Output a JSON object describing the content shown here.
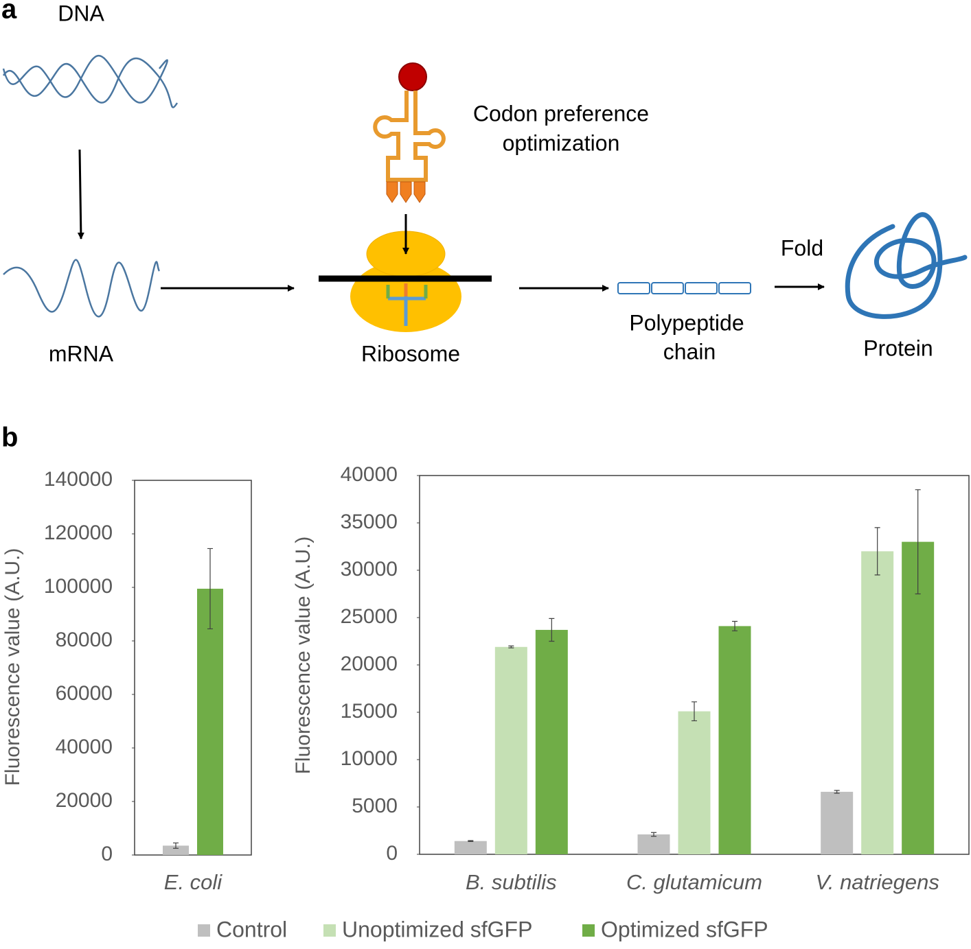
{
  "panel_a": {
    "label": "a",
    "dna": "DNA",
    "codon": [
      "Codon preference",
      "optimization"
    ],
    "mrna": "mRNA",
    "ribosome": "Ribosome",
    "polypeptide": [
      "Polypeptide",
      "chain"
    ],
    "fold": "Fold",
    "protein": "Protein"
  },
  "panel_b": {
    "label": "b"
  },
  "chart_data": [
    {
      "type": "bar",
      "ylabel": "Fluorescence value (A.U.)",
      "categories": [
        "E. coli"
      ],
      "series": [
        {
          "name": "Control",
          "color": "#bfbfbf",
          "values": [
            3500
          ],
          "errors": [
            1000
          ]
        },
        {
          "name": "Optimized sfGFP",
          "color": "#70ad47",
          "values": [
            99500
          ],
          "errors": [
            15000
          ]
        }
      ],
      "ylim": [
        0,
        140000
      ],
      "yticks": [
        0,
        20000,
        40000,
        60000,
        80000,
        100000,
        120000,
        140000
      ],
      "grid": false
    },
    {
      "type": "bar",
      "ylabel": "Fluorescence value (A.U.)",
      "categories": [
        "B. subtilis",
        "C. glutamicum",
        "V. natriegens"
      ],
      "series": [
        {
          "name": "Control",
          "color": "#bfbfbf",
          "values": [
            1400,
            2100,
            6600
          ],
          "errors": [
            50,
            200,
            150
          ]
        },
        {
          "name": "Unoptimized sfGFP",
          "color": "#c5e0b4",
          "values": [
            21900,
            15100,
            32000
          ],
          "errors": [
            100,
            1000,
            2500
          ]
        },
        {
          "name": "Optimized sfGFP",
          "color": "#70ad47",
          "values": [
            23700,
            24100,
            33000
          ],
          "errors": [
            1200,
            500,
            5500
          ]
        }
      ],
      "ylim": [
        0,
        40000
      ],
      "yticks": [
        0,
        5000,
        10000,
        15000,
        20000,
        25000,
        30000,
        35000,
        40000
      ],
      "grid": false,
      "legend": "bottom"
    }
  ]
}
